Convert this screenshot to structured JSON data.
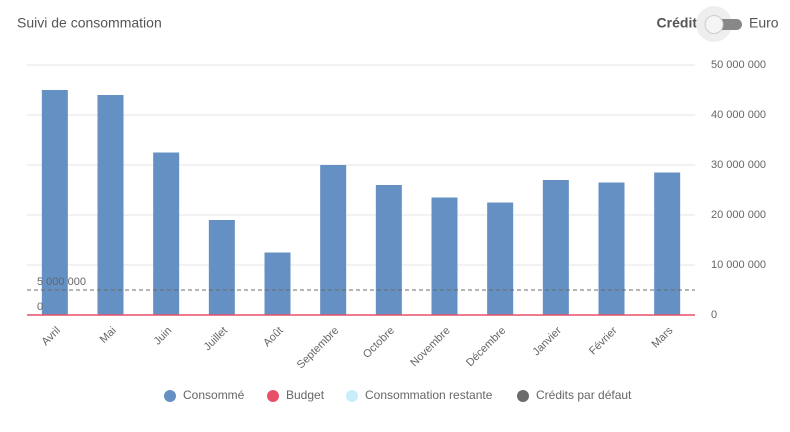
{
  "header": {
    "title": "Suivi de consommation",
    "toggle_left": "Crédit",
    "toggle_right": "Euro"
  },
  "chart_data": {
    "type": "bar",
    "categories": [
      "Avril",
      "Mai",
      "Juin",
      "Juillet",
      "Août",
      "Septembre",
      "Octobre",
      "Novembre",
      "Décembre",
      "Janvier",
      "Février",
      "Mars"
    ],
    "series": [
      {
        "name": "Consommé",
        "color": "#6490c3",
        "values": [
          45000000,
          44000000,
          32500000,
          19000000,
          12500000,
          30000000,
          26000000,
          23500000,
          22500000,
          27000000,
          26500000,
          28500000
        ]
      },
      {
        "name": "Budget",
        "color": "#e8506a",
        "values": [
          0,
          0,
          0,
          0,
          0,
          0,
          0,
          0,
          0,
          0,
          0,
          0
        ],
        "line_label": 0
      },
      {
        "name": "Consommation restante",
        "color": "#c9eef9",
        "values": [
          null,
          null,
          null,
          null,
          null,
          null,
          null,
          null,
          null,
          null,
          null,
          null
        ]
      },
      {
        "name": "Crédits par défaut",
        "color": "#6b6b6b",
        "values": [
          5000000,
          5000000,
          5000000,
          5000000,
          5000000,
          5000000,
          5000000,
          5000000,
          5000000,
          5000000,
          5000000,
          5000000
        ],
        "line_label": {
          "value": 5000000,
          "label": "5 000 000"
        }
      }
    ],
    "ylim": [
      0,
      50000000
    ],
    "yticks": [
      0,
      {
        "value": 10000000,
        "label": "10 000 000"
      },
      {
        "value": 20000000,
        "label": "20 000 000"
      },
      {
        "value": 30000000,
        "label": "30 000 000"
      },
      {
        "value": 40000000,
        "label": "40 000 000"
      },
      {
        "value": 50000000,
        "label": "50 000 000"
      }
    ],
    "grid": true
  }
}
